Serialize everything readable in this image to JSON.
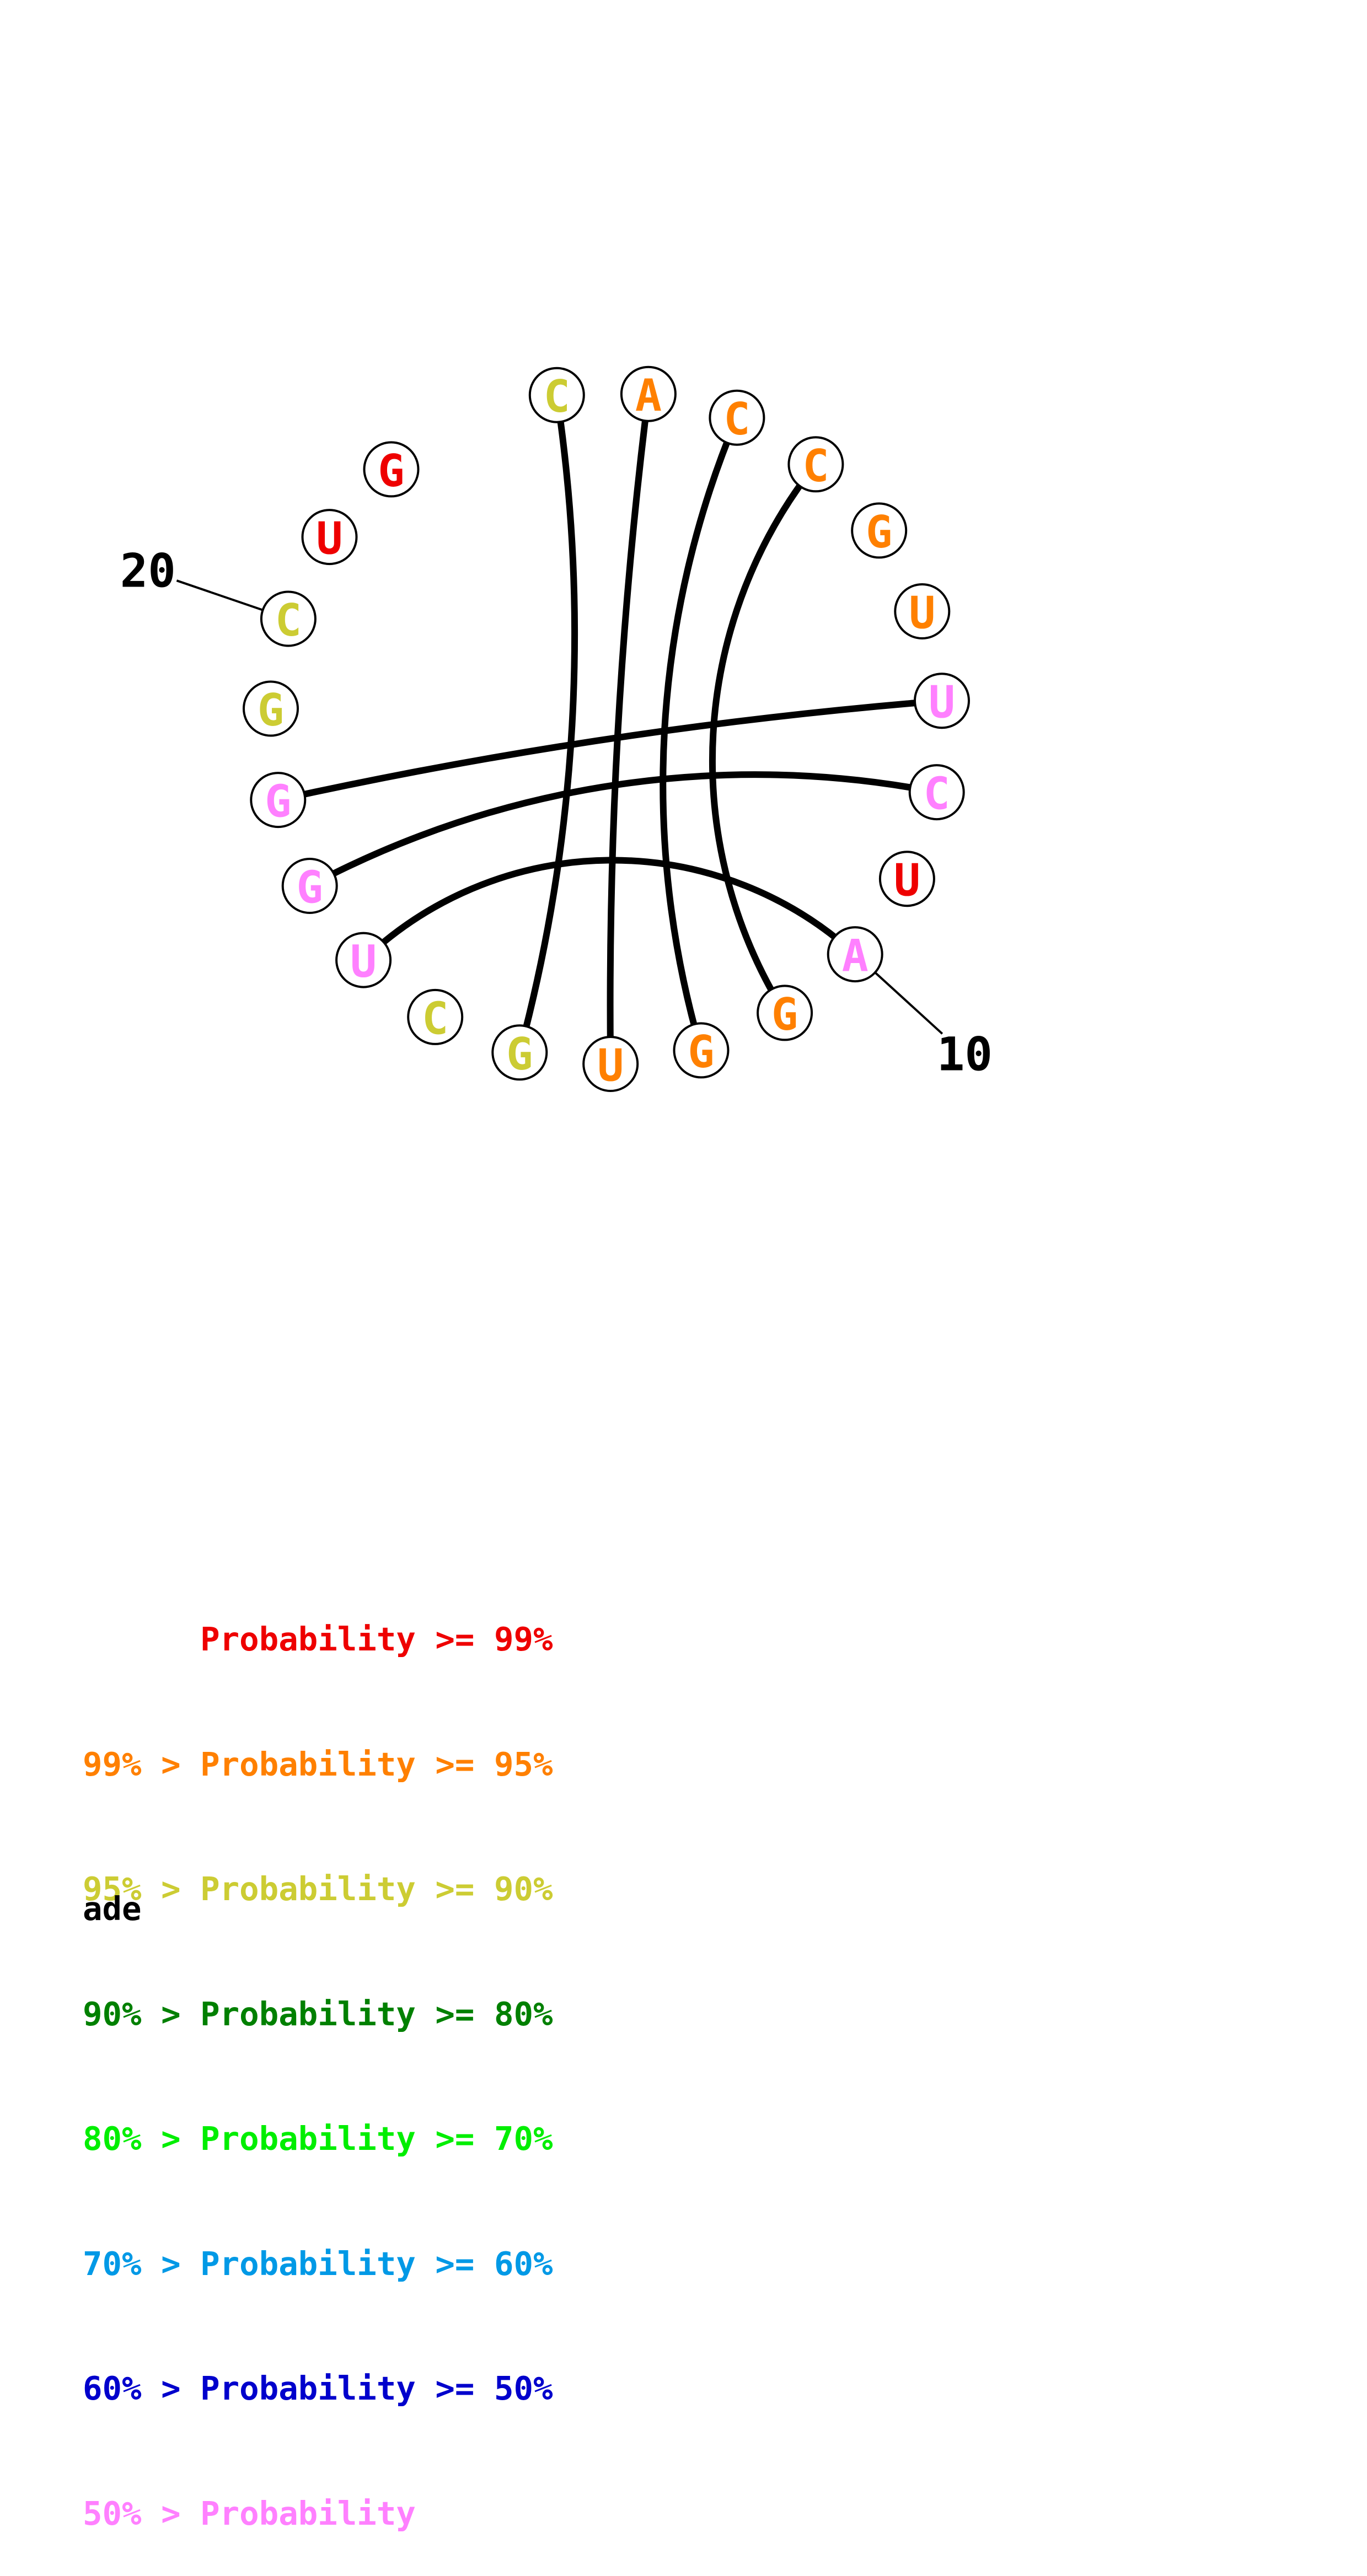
{
  "structure": {
    "nucleotides": [
      {
        "index": 1,
        "base": "C",
        "color": "#cccc33"
      },
      {
        "index": 2,
        "base": "A",
        "color": "#ff8000"
      },
      {
        "index": 3,
        "base": "C",
        "color": "#ff8000"
      },
      {
        "index": 4,
        "base": "C",
        "color": "#ff8000"
      },
      {
        "index": 5,
        "base": "G",
        "color": "#ff8000"
      },
      {
        "index": 6,
        "base": "U",
        "color": "#ff8000"
      },
      {
        "index": 7,
        "base": "U",
        "color": "#ff80ff"
      },
      {
        "index": 8,
        "base": "C",
        "color": "#ff80ff"
      },
      {
        "index": 9,
        "base": "U",
        "color": "#ee0000"
      },
      {
        "index": 10,
        "base": "A",
        "color": "#ff80ff"
      },
      {
        "index": 11,
        "base": "G",
        "color": "#ff8000"
      },
      {
        "index": 12,
        "base": "G",
        "color": "#ff8000"
      },
      {
        "index": 13,
        "base": "U",
        "color": "#ff8000"
      },
      {
        "index": 14,
        "base": "G",
        "color": "#cccc33"
      },
      {
        "index": 15,
        "base": "C",
        "color": "#cccc33"
      },
      {
        "index": 16,
        "base": "U",
        "color": "#ff80ff"
      },
      {
        "index": 17,
        "base": "G",
        "color": "#ff80ff"
      },
      {
        "index": 18,
        "base": "G",
        "color": "#ff80ff"
      },
      {
        "index": 19,
        "base": "G",
        "color": "#cccc33"
      },
      {
        "index": 20,
        "base": "C",
        "color": "#cccc33"
      },
      {
        "index": 21,
        "base": "U",
        "color": "#ee0000"
      },
      {
        "index": 22,
        "base": "G",
        "color": "#ee0000"
      }
    ],
    "pairs": [
      [
        1,
        14
      ],
      [
        2,
        13
      ],
      [
        3,
        12
      ],
      [
        4,
        11
      ],
      [
        7,
        18
      ],
      [
        8,
        17
      ],
      [
        10,
        16
      ]
    ],
    "position_labels": [
      {
        "text": "20",
        "index": 20
      },
      {
        "text": "10",
        "index": 10
      }
    ]
  },
  "legend": [
    {
      "prefix": "",
      "label": "Probability",
      "suffix": ">= 99%",
      "color": "#ee0000"
    },
    {
      "prefix": "99% >",
      "label": "Probability",
      "suffix": ">= 95%",
      "color": "#ff8000"
    },
    {
      "prefix": "95% >",
      "label": "Probability",
      "suffix": ">= 90%",
      "color": "#cccc33"
    },
    {
      "prefix": "90% >",
      "label": "Probability",
      "suffix": ">= 80%",
      "color": "#008000"
    },
    {
      "prefix": "80% >",
      "label": "Probability",
      "suffix": ">= 70%",
      "color": "#00ee00"
    },
    {
      "prefix": "70% >",
      "label": "Probability",
      "suffix": ">= 60%",
      "color": "#0099e6"
    },
    {
      "prefix": "60% >",
      "label": "Probability",
      "suffix": ">= 50%",
      "color": "#0000cc"
    },
    {
      "prefix": "50% >",
      "label": "Probability",
      "suffix": "",
      "color": "#ff80ff"
    }
  ],
  "caption": "ade"
}
